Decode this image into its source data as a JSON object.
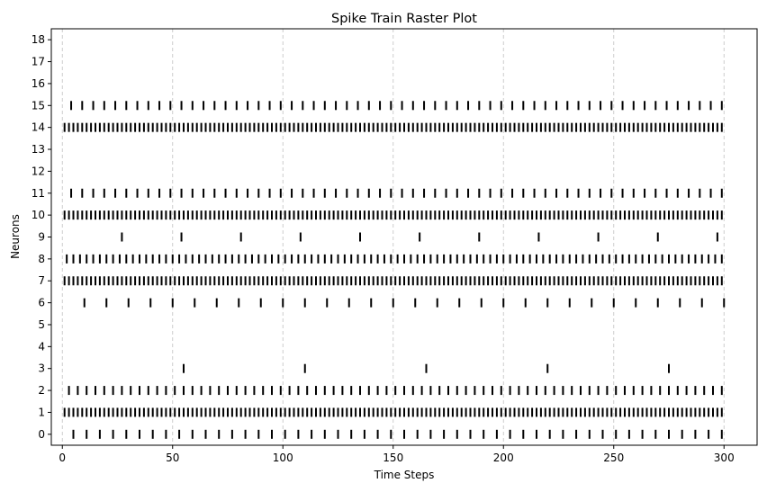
{
  "chart_data": {
    "type": "scatter",
    "title": "Spike Train Raster Plot",
    "xlabel": "Time Steps",
    "ylabel": "Neurons",
    "xlim": [
      -5,
      315
    ],
    "ylim": [
      -0.5,
      18.5
    ],
    "xticks": [
      0,
      50,
      100,
      150,
      200,
      250,
      300
    ],
    "yticks": [
      0,
      1,
      2,
      3,
      4,
      5,
      6,
      7,
      8,
      9,
      10,
      11,
      12,
      13,
      14,
      15,
      16,
      17,
      18
    ],
    "grid": "x-axis dashed",
    "marker": "vertical tick",
    "series": [
      {
        "neuron": 0,
        "spike_times": [
          5,
          11,
          17,
          23,
          29,
          35,
          41,
          47,
          53,
          59,
          65,
          71,
          77,
          83,
          89,
          95,
          101,
          107,
          113,
          119,
          125,
          131,
          137,
          143,
          149,
          155,
          161,
          167,
          173,
          179,
          185,
          191,
          197,
          203,
          209,
          215,
          221,
          227,
          233,
          239,
          245,
          251,
          257,
          263,
          269,
          275,
          281,
          287,
          293,
          299
        ]
      },
      {
        "neuron": 1,
        "spike_times": [
          1,
          3,
          5,
          7,
          9,
          11,
          13,
          15,
          17,
          19,
          21,
          23,
          25,
          27,
          29,
          31,
          33,
          35,
          37,
          39,
          41,
          43,
          45,
          47,
          49,
          51,
          53,
          55,
          57,
          59,
          61,
          63,
          65,
          67,
          69,
          71,
          73,
          75,
          77,
          79,
          81,
          83,
          85,
          87,
          89,
          91,
          93,
          95,
          97,
          99,
          101,
          103,
          105,
          107,
          109,
          111,
          113,
          115,
          117,
          119,
          121,
          123,
          125,
          127,
          129,
          131,
          133,
          135,
          137,
          139,
          141,
          143,
          145,
          147,
          149,
          151,
          153,
          155,
          157,
          159,
          161,
          163,
          165,
          167,
          169,
          171,
          173,
          175,
          177,
          179,
          181,
          183,
          185,
          187,
          189,
          191,
          193,
          195,
          197,
          199,
          201,
          203,
          205,
          207,
          209,
          211,
          213,
          215,
          217,
          219,
          221,
          223,
          225,
          227,
          229,
          231,
          233,
          235,
          237,
          239,
          241,
          243,
          245,
          247,
          249,
          251,
          253,
          255,
          257,
          259,
          261,
          263,
          265,
          267,
          269,
          271,
          273,
          275,
          277,
          279,
          281,
          283,
          285,
          287,
          289,
          291,
          293,
          295,
          297,
          299
        ]
      },
      {
        "neuron": 2,
        "spike_times": [
          3,
          7,
          11,
          15,
          19,
          23,
          27,
          31,
          35,
          39,
          43,
          47,
          51,
          55,
          59,
          63,
          67,
          71,
          75,
          79,
          83,
          87,
          91,
          95,
          99,
          103,
          107,
          111,
          115,
          119,
          123,
          127,
          131,
          135,
          139,
          143,
          147,
          151,
          155,
          159,
          163,
          167,
          171,
          175,
          179,
          183,
          187,
          191,
          195,
          199,
          203,
          207,
          211,
          215,
          219,
          223,
          227,
          231,
          235,
          239,
          243,
          247,
          251,
          255,
          259,
          263,
          267,
          271,
          275,
          279,
          283,
          287,
          291,
          295,
          299
        ]
      },
      {
        "neuron": 3,
        "spike_times": [
          55,
          110,
          165,
          220,
          275
        ]
      },
      {
        "neuron": 4,
        "spike_times": []
      },
      {
        "neuron": 5,
        "spike_times": []
      },
      {
        "neuron": 6,
        "spike_times": [
          10,
          20,
          30,
          40,
          50,
          60,
          70,
          80,
          90,
          100,
          110,
          120,
          130,
          140,
          150,
          160,
          170,
          180,
          190,
          200,
          210,
          220,
          230,
          240,
          250,
          260,
          270,
          280,
          290,
          300
        ]
      },
      {
        "neuron": 7,
        "spike_times": [
          1,
          3,
          5,
          7,
          9,
          11,
          13,
          15,
          17,
          19,
          21,
          23,
          25,
          27,
          29,
          31,
          33,
          35,
          37,
          39,
          41,
          43,
          45,
          47,
          49,
          51,
          53,
          55,
          57,
          59,
          61,
          63,
          65,
          67,
          69,
          71,
          73,
          75,
          77,
          79,
          81,
          83,
          85,
          87,
          89,
          91,
          93,
          95,
          97,
          99,
          101,
          103,
          105,
          107,
          109,
          111,
          113,
          115,
          117,
          119,
          121,
          123,
          125,
          127,
          129,
          131,
          133,
          135,
          137,
          139,
          141,
          143,
          145,
          147,
          149,
          151,
          153,
          155,
          157,
          159,
          161,
          163,
          165,
          167,
          169,
          171,
          173,
          175,
          177,
          179,
          181,
          183,
          185,
          187,
          189,
          191,
          193,
          195,
          197,
          199,
          201,
          203,
          205,
          207,
          209,
          211,
          213,
          215,
          217,
          219,
          221,
          223,
          225,
          227,
          229,
          231,
          233,
          235,
          237,
          239,
          241,
          243,
          245,
          247,
          249,
          251,
          253,
          255,
          257,
          259,
          261,
          263,
          265,
          267,
          269,
          271,
          273,
          275,
          277,
          279,
          281,
          283,
          285,
          287,
          289,
          291,
          293,
          295,
          297,
          299
        ]
      },
      {
        "neuron": 8,
        "spike_times": [
          2,
          5,
          8,
          11,
          14,
          17,
          20,
          23,
          26,
          29,
          32,
          35,
          38,
          41,
          44,
          47,
          50,
          53,
          56,
          59,
          62,
          65,
          68,
          71,
          74,
          77,
          80,
          83,
          86,
          89,
          92,
          95,
          98,
          101,
          104,
          107,
          110,
          113,
          116,
          119,
          122,
          125,
          128,
          131,
          134,
          137,
          140,
          143,
          146,
          149,
          152,
          155,
          158,
          161,
          164,
          167,
          170,
          173,
          176,
          179,
          182,
          185,
          188,
          191,
          194,
          197,
          200,
          203,
          206,
          209,
          212,
          215,
          218,
          221,
          224,
          227,
          230,
          233,
          236,
          239,
          242,
          245,
          248,
          251,
          254,
          257,
          260,
          263,
          266,
          269,
          272,
          275,
          278,
          281,
          284,
          287,
          290,
          293,
          296,
          299
        ]
      },
      {
        "neuron": 9,
        "spike_times": [
          27,
          54,
          81,
          108,
          135,
          162,
          189,
          216,
          243,
          270,
          297
        ]
      },
      {
        "neuron": 10,
        "spike_times": [
          1,
          3,
          5,
          7,
          9,
          11,
          13,
          15,
          17,
          19,
          21,
          23,
          25,
          27,
          29,
          31,
          33,
          35,
          37,
          39,
          41,
          43,
          45,
          47,
          49,
          51,
          53,
          55,
          57,
          59,
          61,
          63,
          65,
          67,
          69,
          71,
          73,
          75,
          77,
          79,
          81,
          83,
          85,
          87,
          89,
          91,
          93,
          95,
          97,
          99,
          101,
          103,
          105,
          107,
          109,
          111,
          113,
          115,
          117,
          119,
          121,
          123,
          125,
          127,
          129,
          131,
          133,
          135,
          137,
          139,
          141,
          143,
          145,
          147,
          149,
          151,
          153,
          155,
          157,
          159,
          161,
          163,
          165,
          167,
          169,
          171,
          173,
          175,
          177,
          179,
          181,
          183,
          185,
          187,
          189,
          191,
          193,
          195,
          197,
          199,
          201,
          203,
          205,
          207,
          209,
          211,
          213,
          215,
          217,
          219,
          221,
          223,
          225,
          227,
          229,
          231,
          233,
          235,
          237,
          239,
          241,
          243,
          245,
          247,
          249,
          251,
          253,
          255,
          257,
          259,
          261,
          263,
          265,
          267,
          269,
          271,
          273,
          275,
          277,
          279,
          281,
          283,
          285,
          287,
          289,
          291,
          293,
          295,
          297,
          299
        ]
      },
      {
        "neuron": 11,
        "spike_times": [
          4,
          9,
          14,
          19,
          24,
          29,
          34,
          39,
          44,
          49,
          54,
          59,
          64,
          69,
          74,
          79,
          84,
          89,
          94,
          99,
          104,
          109,
          114,
          119,
          124,
          129,
          134,
          139,
          144,
          149,
          154,
          159,
          164,
          169,
          174,
          179,
          184,
          189,
          194,
          199,
          204,
          209,
          214,
          219,
          224,
          229,
          234,
          239,
          244,
          249,
          254,
          259,
          264,
          269,
          274,
          279,
          284,
          289,
          294,
          299
        ]
      },
      {
        "neuron": 12,
        "spike_times": []
      },
      {
        "neuron": 13,
        "spike_times": []
      },
      {
        "neuron": 14,
        "spike_times": [
          1,
          3,
          5,
          7,
          9,
          11,
          13,
          15,
          17,
          19,
          21,
          23,
          25,
          27,
          29,
          31,
          33,
          35,
          37,
          39,
          41,
          43,
          45,
          47,
          49,
          51,
          53,
          55,
          57,
          59,
          61,
          63,
          65,
          67,
          69,
          71,
          73,
          75,
          77,
          79,
          81,
          83,
          85,
          87,
          89,
          91,
          93,
          95,
          97,
          99,
          101,
          103,
          105,
          107,
          109,
          111,
          113,
          115,
          117,
          119,
          121,
          123,
          125,
          127,
          129,
          131,
          133,
          135,
          137,
          139,
          141,
          143,
          145,
          147,
          149,
          151,
          153,
          155,
          157,
          159,
          161,
          163,
          165,
          167,
          169,
          171,
          173,
          175,
          177,
          179,
          181,
          183,
          185,
          187,
          189,
          191,
          193,
          195,
          197,
          199,
          201,
          203,
          205,
          207,
          209,
          211,
          213,
          215,
          217,
          219,
          221,
          223,
          225,
          227,
          229,
          231,
          233,
          235,
          237,
          239,
          241,
          243,
          245,
          247,
          249,
          251,
          253,
          255,
          257,
          259,
          261,
          263,
          265,
          267,
          269,
          271,
          273,
          275,
          277,
          279,
          281,
          283,
          285,
          287,
          289,
          291,
          293,
          295,
          297,
          299
        ]
      },
      {
        "neuron": 15,
        "spike_times": [
          4,
          9,
          14,
          19,
          24,
          29,
          34,
          39,
          44,
          49,
          54,
          59,
          64,
          69,
          74,
          79,
          84,
          89,
          94,
          99,
          104,
          109,
          114,
          119,
          124,
          129,
          134,
          139,
          144,
          149,
          154,
          159,
          164,
          169,
          174,
          179,
          184,
          189,
          194,
          199,
          204,
          209,
          214,
          219,
          224,
          229,
          234,
          239,
          244,
          249,
          254,
          259,
          264,
          269,
          274,
          279,
          284,
          289,
          294,
          299
        ]
      },
      {
        "neuron": 16,
        "spike_times": []
      },
      {
        "neuron": 17,
        "spike_times": []
      },
      {
        "neuron": 18,
        "spike_times": []
      }
    ]
  }
}
